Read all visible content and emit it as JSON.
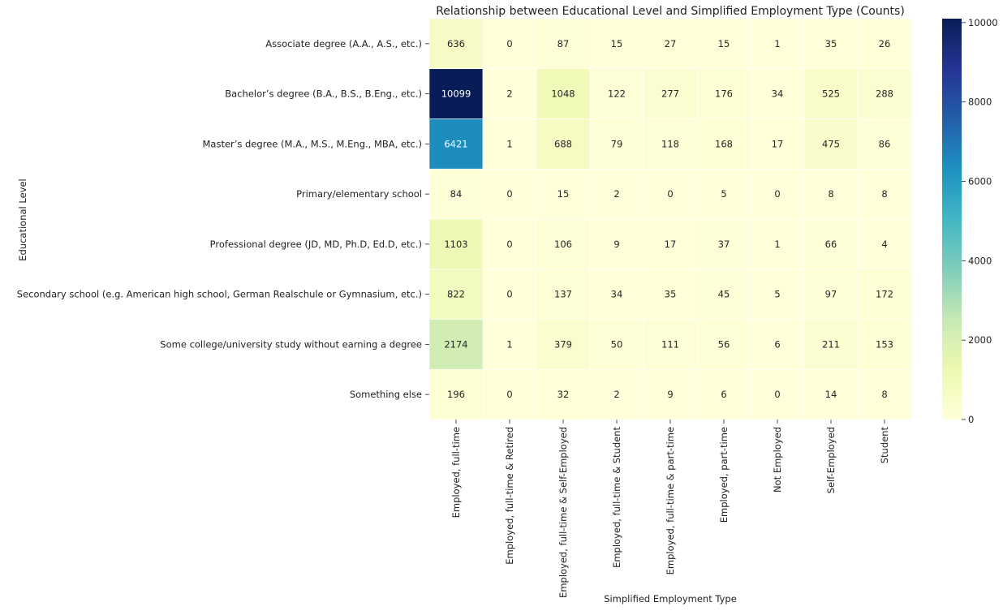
{
  "chart_data": {
    "type": "heatmap",
    "title": "Relationship between Educational Level and Simplified Employment Type (Counts)",
    "xlabel": "Simplified Employment Type",
    "ylabel": "Educational Level",
    "rows": [
      "Associate degree (A.A., A.S., etc.)",
      "Bachelor’s degree (B.A., B.S., B.Eng., etc.)",
      "Master’s degree (M.A., M.S., M.Eng., MBA, etc.)",
      "Primary/elementary school",
      "Professional degree (JD, MD, Ph.D, Ed.D, etc.)",
      "Secondary school (e.g. American high school, German Realschule or Gymnasium, etc.)",
      "Some college/university study without earning a degree",
      "Something else"
    ],
    "columns": [
      "Employed, full-time",
      "Employed, full-time & Retired",
      "Employed, full-time & Self-Employed",
      "Employed, full-time & Student",
      "Employed, full-time & part-time",
      "Employed, part-time",
      "Not Employed",
      "Self-Employed",
      "Student"
    ],
    "values": [
      [
        636,
        0,
        87,
        15,
        27,
        15,
        1,
        35,
        26
      ],
      [
        10099,
        2,
        1048,
        122,
        277,
        176,
        34,
        525,
        288
      ],
      [
        6421,
        1,
        688,
        79,
        118,
        168,
        17,
        475,
        86
      ],
      [
        84,
        0,
        15,
        2,
        0,
        5,
        0,
        8,
        8
      ],
      [
        1103,
        0,
        106,
        9,
        17,
        37,
        1,
        66,
        4
      ],
      [
        822,
        0,
        137,
        34,
        35,
        45,
        5,
        97,
        172
      ],
      [
        2174,
        1,
        379,
        50,
        111,
        56,
        6,
        211,
        153
      ],
      [
        196,
        0,
        32,
        2,
        9,
        6,
        0,
        14,
        8
      ]
    ],
    "colorscale": "YlGnBu",
    "vmin": 0,
    "vmax": 10099,
    "colorbar_ticks": [
      0,
      2000,
      4000,
      6000,
      8000,
      10000
    ],
    "grid": false
  }
}
